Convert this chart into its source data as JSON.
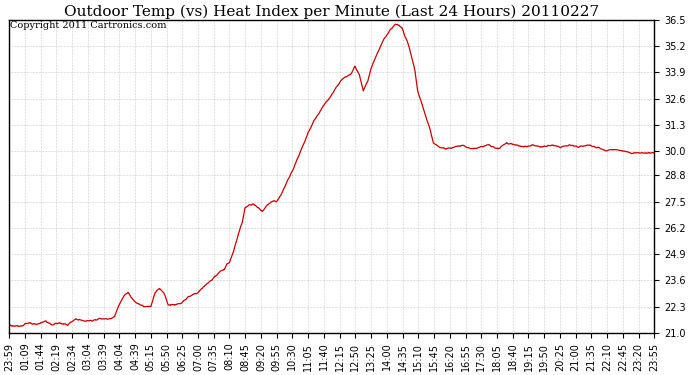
{
  "title": "Outdoor Temp (vs) Heat Index per Minute (Last 24 Hours) 20110227",
  "copyright": "Copyright 2011 Cartronics.com",
  "line_color": "#cc0000",
  "background_color": "#ffffff",
  "plot_bg_color": "#ffffff",
  "grid_color": "#888888",
  "ylim": [
    21.0,
    36.5
  ],
  "yticks": [
    21.0,
    22.3,
    23.6,
    24.9,
    26.2,
    27.5,
    28.8,
    30.0,
    31.3,
    32.6,
    33.9,
    35.2,
    36.5
  ],
  "xtick_labels": [
    "23:59",
    "01:09",
    "01:44",
    "02:19",
    "02:34",
    "03:04",
    "03:39",
    "04:04",
    "04:39",
    "05:15",
    "05:50",
    "06:25",
    "07:00",
    "07:35",
    "08:10",
    "08:45",
    "09:20",
    "09:55",
    "10:30",
    "11:05",
    "11:40",
    "12:15",
    "12:50",
    "13:25",
    "14:00",
    "14:35",
    "15:10",
    "15:45",
    "16:20",
    "16:55",
    "17:30",
    "18:05",
    "18:40",
    "19:15",
    "19:50",
    "20:25",
    "21:00",
    "21:35",
    "22:10",
    "22:45",
    "23:20",
    "23:55"
  ],
  "title_fontsize": 11,
  "tick_fontsize": 7,
  "copyright_fontsize": 7,
  "linewidth": 0.9
}
